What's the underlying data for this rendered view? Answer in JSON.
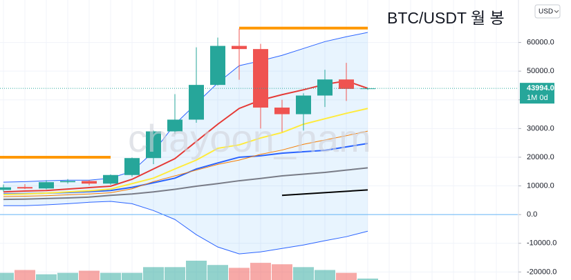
{
  "chart_data": {
    "type": "candlestick",
    "title": "BTC/USDT 월 봉",
    "watermark": "chayoon_nam",
    "currency": "USD",
    "current_price": {
      "value": 43994,
      "label": "43994.0"
    },
    "countdown": "1M 0d",
    "up_color": "#26a69a",
    "down_color": "#ef5350",
    "ylim": [
      -22800,
      74800
    ],
    "yticks": [
      {
        "value": 60000,
        "label": "60000.0"
      },
      {
        "value": 50000,
        "label": "50000.0"
      },
      {
        "value": 40000,
        "label": "40000.0"
      },
      {
        "value": 30000,
        "label": "30000.0"
      },
      {
        "value": 20000,
        "label": "20000.0"
      },
      {
        "value": 10000,
        "label": "10000.0"
      },
      {
        "value": 0,
        "label": "0.0"
      },
      {
        "value": -10000,
        "label": "-10000.0"
      },
      {
        "value": -20000,
        "label": "-20000.0"
      }
    ],
    "open": [
      8600,
      9600,
      9100,
      11300,
      11700,
      10800,
      13800,
      19700,
      29000,
      33100,
      45200,
      58800,
      57700,
      37300,
      35000,
      41500,
      47100,
      43800
    ],
    "high": [
      10500,
      10600,
      12000,
      12400,
      12000,
      14000,
      19900,
      29300,
      42000,
      58300,
      61700,
      64800,
      59500,
      40000,
      42300,
      50500,
      52900,
      44200
    ],
    "low": [
      8000,
      8900,
      8800,
      10800,
      10200,
      10400,
      13200,
      17600,
      28100,
      32000,
      45000,
      47000,
      30000,
      28800,
      29300,
      37500,
      39600,
      43500
    ],
    "close": [
      9500,
      9100,
      11300,
      11700,
      10800,
      13800,
      19700,
      29000,
      33100,
      45200,
      58800,
      57700,
      37300,
      35000,
      41500,
      47100,
      43800,
      43994
    ],
    "volume": [
      10,
      14,
      8,
      10,
      13,
      10,
      10,
      18,
      18,
      27,
      21,
      17,
      24,
      22,
      18,
      14,
      10,
      2
    ],
    "series": [
      {
        "color": "#2962ff",
        "width": 1,
        "values": [
          11300,
          11500,
          11800,
          12000,
          12000,
          12700,
          15100,
          21900,
          31500,
          38700,
          45900,
          51900,
          53600,
          55500,
          57900,
          60300,
          62000,
          63500
        ]
      },
      {
        "color": "#2962ff",
        "width": 1,
        "values": [
          3100,
          3100,
          3400,
          3800,
          4300,
          4600,
          3800,
          1400,
          -1700,
          -7000,
          -11300,
          -13700,
          -13000,
          -11800,
          -10600,
          -9100,
          -7700,
          -5800
        ]
      },
      {
        "color": "#787b86",
        "width": 2,
        "values": [
          5300,
          5400,
          5600,
          5800,
          6100,
          6700,
          7200,
          7900,
          8800,
          9900,
          10800,
          11800,
          12600,
          13500,
          14100,
          14700,
          15500,
          16300
        ]
      },
      {
        "color": "#2962ff",
        "width": 2,
        "values": [
          7200,
          7300,
          7500,
          7700,
          8000,
          8400,
          9500,
          11100,
          12700,
          15900,
          18000,
          20000,
          20500,
          21400,
          21900,
          22400,
          23600,
          24800
        ]
      },
      {
        "color": "#f57c00",
        "width": 1,
        "values": [
          6250,
          6400,
          6600,
          6900,
          7200,
          7600,
          9000,
          11500,
          13500,
          15500,
          17500,
          19000,
          21000,
          22500,
          24500,
          26000,
          27500,
          29100
        ]
      },
      {
        "color": "#ffeb3b",
        "width": 2,
        "values": [
          7000,
          7200,
          7500,
          7900,
          8300,
          8900,
          10800,
          12700,
          15900,
          19000,
          23100,
          24300,
          26700,
          28600,
          31500,
          33400,
          35300,
          37000
        ]
      },
      {
        "color": "#e53935",
        "width": 2,
        "values": [
          7900,
          8200,
          8400,
          8900,
          9400,
          9900,
          12300,
          15900,
          19500,
          25500,
          31500,
          37000,
          39900,
          41800,
          43500,
          45400,
          46600,
          44000
        ]
      }
    ],
    "drawings": [
      {
        "color": "#ff9800",
        "width": 4,
        "from": [
          -0.2,
          20000
        ],
        "to": [
          5,
          20000
        ]
      },
      {
        "color": "#ff9800",
        "width": 4,
        "from": [
          11,
          65000
        ],
        "to": [
          17,
          65000
        ]
      },
      {
        "color": "#000000",
        "width": 2,
        "from": [
          13,
          6700
        ],
        "to": [
          17,
          8600
        ]
      },
      {
        "color": "#64b5f6",
        "width": 1,
        "from": [
          -0.2,
          0
        ],
        "to": [
          24,
          0
        ]
      }
    ]
  }
}
